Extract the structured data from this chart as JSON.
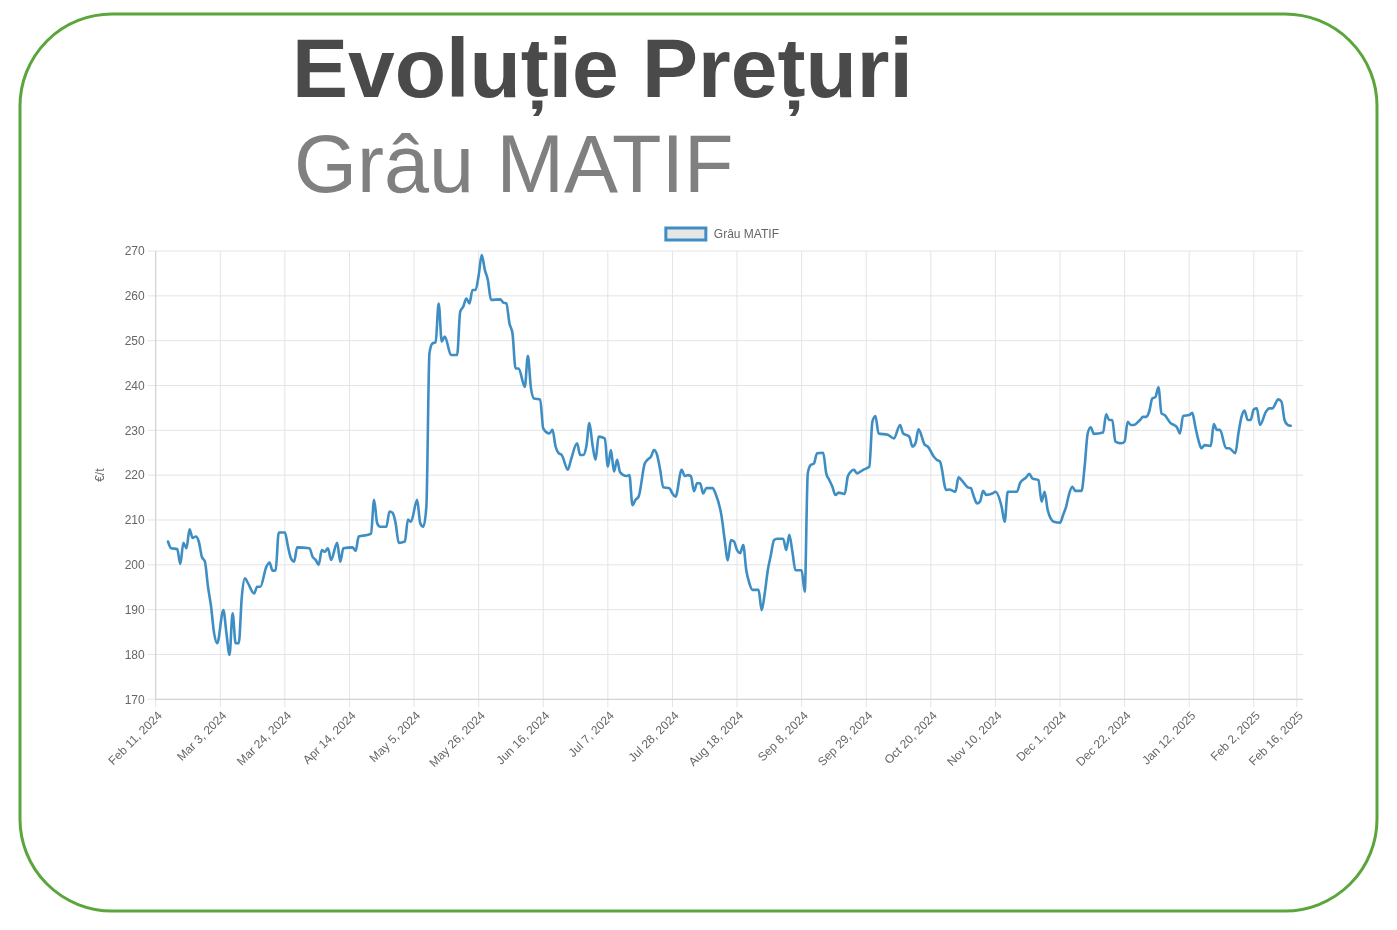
{
  "chart_data": {
    "type": "line",
    "title": "Evoluție Prețuri",
    "subtitle": "Grâu MATIF",
    "ylabel": "€/t",
    "x": [
      "2024-02-15",
      "2024-02-16",
      "2024-02-18",
      "2024-02-19",
      "2024-02-20",
      "2024-02-21",
      "2024-02-22",
      "2024-02-23",
      "2024-02-24",
      "2024-02-25",
      "2024-02-26",
      "2024-02-27",
      "2024-02-28",
      "2024-02-29",
      "2024-03-01",
      "2024-03-02",
      "2024-03-04",
      "2024-03-05",
      "2024-03-06",
      "2024-03-07",
      "2024-03-08",
      "2024-03-09",
      "2024-03-10",
      "2024-03-11",
      "2024-03-12",
      "2024-03-14",
      "2024-03-15",
      "2024-03-16",
      "2024-03-18",
      "2024-03-19",
      "2024-03-20",
      "2024-03-21",
      "2024-03-22",
      "2024-03-24",
      "2024-03-25",
      "2024-03-26",
      "2024-03-27",
      "2024-03-28",
      "2024-04-01",
      "2024-04-02",
      "2024-04-03",
      "2024-04-04",
      "2024-04-05",
      "2024-04-06",
      "2024-04-07",
      "2024-04-08",
      "2024-04-10",
      "2024-04-11",
      "2024-04-12",
      "2024-04-15",
      "2024-04-16",
      "2024-04-17",
      "2024-04-20",
      "2024-04-21",
      "2024-04-22",
      "2024-04-23",
      "2024-04-24",
      "2024-04-26",
      "2024-04-27",
      "2024-04-28",
      "2024-04-29",
      "2024-04-30",
      "2024-05-02",
      "2024-05-03",
      "2024-05-04",
      "2024-05-06",
      "2024-05-07",
      "2024-05-08",
      "2024-05-09",
      "2024-05-10",
      "2024-05-11",
      "2024-05-12",
      "2024-05-13",
      "2024-05-14",
      "2024-05-15",
      "2024-05-17",
      "2024-05-19",
      "2024-05-20",
      "2024-05-21",
      "2024-05-22",
      "2024-05-23",
      "2024-05-24",
      "2024-05-25",
      "2024-05-26",
      "2024-05-27",
      "2024-05-28",
      "2024-05-29",
      "2024-05-30",
      "2024-06-02",
      "2024-06-03",
      "2024-06-04",
      "2024-06-05",
      "2024-06-06",
      "2024-06-07",
      "2024-06-08",
      "2024-06-10",
      "2024-06-11",
      "2024-06-12",
      "2024-06-13",
      "2024-06-15",
      "2024-06-16",
      "2024-06-18",
      "2024-06-19",
      "2024-06-20",
      "2024-06-21",
      "2024-06-22",
      "2024-06-24",
      "2024-06-25",
      "2024-06-27",
      "2024-06-28",
      "2024-06-29",
      "2024-06-30",
      "2024-07-01",
      "2024-07-02",
      "2024-07-03",
      "2024-07-04",
      "2024-07-06",
      "2024-07-07",
      "2024-07-08",
      "2024-07-09",
      "2024-07-10",
      "2024-07-11",
      "2024-07-13",
      "2024-07-14",
      "2024-07-15",
      "2024-07-16",
      "2024-07-17",
      "2024-07-19",
      "2024-07-20",
      "2024-07-21",
      "2024-07-22",
      "2024-07-23",
      "2024-07-24",
      "2024-07-25",
      "2024-07-27",
      "2024-07-28",
      "2024-07-29",
      "2024-07-31",
      "2024-08-01",
      "2024-08-02",
      "2024-08-03",
      "2024-08-04",
      "2024-08-05",
      "2024-08-06",
      "2024-08-07",
      "2024-08-08",
      "2024-08-10",
      "2024-08-11",
      "2024-08-13",
      "2024-08-14",
      "2024-08-15",
      "2024-08-16",
      "2024-08-17",
      "2024-08-18",
      "2024-08-19",
      "2024-08-20",
      "2024-08-21",
      "2024-08-22",
      "2024-08-23",
      "2024-08-25",
      "2024-08-26",
      "2024-08-27",
      "2024-08-28",
      "2024-08-29",
      "2024-08-30",
      "2024-08-31",
      "2024-09-02",
      "2024-09-03",
      "2024-09-04",
      "2024-09-05",
      "2024-09-06",
      "2024-09-08",
      "2024-09-09",
      "2024-09-10",
      "2024-09-11",
      "2024-09-12",
      "2024-09-13",
      "2024-09-15",
      "2024-09-16",
      "2024-09-17",
      "2024-09-18",
      "2024-09-19",
      "2024-09-20",
      "2024-09-22",
      "2024-09-23",
      "2024-09-24",
      "2024-09-25",
      "2024-09-26",
      "2024-09-28",
      "2024-09-30",
      "2024-10-01",
      "2024-10-02",
      "2024-10-03",
      "2024-10-06",
      "2024-10-08",
      "2024-10-10",
      "2024-10-11",
      "2024-10-12",
      "2024-10-13",
      "2024-10-14",
      "2024-10-15",
      "2024-10-16",
      "2024-10-18",
      "2024-10-19",
      "2024-10-21",
      "2024-10-22",
      "2024-10-23",
      "2024-10-25",
      "2024-10-26",
      "2024-10-28",
      "2024-10-29",
      "2024-10-30",
      "2024-11-01",
      "2024-11-02",
      "2024-11-03",
      "2024-11-04",
      "2024-11-05",
      "2024-11-06",
      "2024-11-07",
      "2024-11-09",
      "2024-11-10",
      "2024-11-12",
      "2024-11-13",
      "2024-11-14",
      "2024-11-17",
      "2024-11-18",
      "2024-11-20",
      "2024-11-21",
      "2024-11-22",
      "2024-11-24",
      "2024-11-25",
      "2024-11-26",
      "2024-11-27",
      "2024-11-29",
      "2024-12-01",
      "2024-12-02",
      "2024-12-03",
      "2024-12-04",
      "2024-12-05",
      "2024-12-06",
      "2024-12-08",
      "2024-12-09",
      "2024-12-10",
      "2024-12-11",
      "2024-12-12",
      "2024-12-15",
      "2024-12-16",
      "2024-12-17",
      "2024-12-18",
      "2024-12-19",
      "2024-12-21",
      "2024-12-22",
      "2024-12-23",
      "2024-12-24",
      "2024-12-25",
      "2024-12-27",
      "2024-12-28",
      "2024-12-29",
      "2024-12-30",
      "2024-12-31",
      "2025-01-01",
      "2025-01-02",
      "2025-01-03",
      "2025-01-04",
      "2025-01-06",
      "2025-01-07",
      "2025-01-08",
      "2025-01-09",
      "2025-01-10",
      "2025-01-12",
      "2025-01-13",
      "2025-01-14",
      "2025-01-15",
      "2025-01-16",
      "2025-01-17",
      "2025-01-19",
      "2025-01-20",
      "2025-01-21",
      "2025-01-22",
      "2025-01-24",
      "2025-01-25",
      "2025-01-27",
      "2025-01-28",
      "2025-01-29",
      "2025-01-30",
      "2025-01-31",
      "2025-02-01",
      "2025-02-02",
      "2025-02-03",
      "2025-02-04",
      "2025-02-06",
      "2025-02-07",
      "2025-02-08",
      "2025-02-10",
      "2025-02-11",
      "2025-02-12",
      "2025-02-13",
      "2025-02-14"
    ],
    "series": [
      {
        "name": "Grâu MATIF",
        "color": "#3e8ec4",
        "values": [
          205.2,
          203.7,
          203.5,
          200.2,
          204.9,
          203.7,
          207.9,
          206,
          206.3,
          205.2,
          201.8,
          200.7,
          195.1,
          190.7,
          184.7,
          182.5,
          189.9,
          184.7,
          179.9,
          189.2,
          182.5,
          182.5,
          192.9,
          197,
          195.9,
          193.6,
          195.1,
          195.1,
          199.6,
          200.5,
          198.7,
          198.8,
          207.2,
          207.2,
          204.1,
          201.4,
          200.7,
          203.9,
          203.7,
          201.8,
          201.1,
          200,
          203.3,
          202.9,
          203.7,
          201.1,
          204.9,
          200.7,
          203.7,
          203.9,
          203.1,
          206.3,
          206.7,
          207,
          214.5,
          209.3,
          208.5,
          208.5,
          211.9,
          211.6,
          209.3,
          204.9,
          205.2,
          210.1,
          209.6,
          214.5,
          209.3,
          208.5,
          213,
          247.2,
          249.4,
          249.6,
          258.3,
          249.8,
          250.9,
          246.8,
          246.8,
          256.5,
          257.6,
          259.4,
          258.3,
          261.3,
          261.3,
          264.6,
          269.1,
          265.8,
          263.5,
          259.1,
          259.2,
          258.5,
          258.3,
          253.9,
          251.6,
          243.8,
          243.8,
          239.7,
          246.6,
          239.4,
          237.1,
          236.9,
          230.4,
          229.3,
          230.1,
          226.4,
          224.9,
          224.5,
          221.2,
          223.4,
          227.1,
          224.5,
          224.5,
          226.4,
          231.6,
          226.8,
          223.4,
          228.6,
          228.2,
          221.9,
          225.6,
          220.8,
          223.4,
          220.6,
          219.8,
          220,
          213.3,
          214.5,
          215.2,
          222.6,
          223.5,
          224.1,
          225.6,
          224.5,
          221.2,
          217.3,
          217.1,
          215.9,
          215.2,
          221.2,
          219.8,
          220,
          219.8,
          216.4,
          218.2,
          218.2,
          215.9,
          217.1,
          217.1,
          215.9,
          210.7,
          205.5,
          201,
          205.5,
          205.2,
          203.3,
          202.6,
          204.4,
          198.8,
          195.9,
          194.4,
          194.4,
          189.9,
          193.6,
          198.8,
          202.2,
          205.5,
          205.8,
          205.8,
          203.3,
          206.7,
          202.9,
          198.8,
          198.8,
          194,
          220.4,
          222.3,
          222.6,
          224.9,
          225,
          220.4,
          218.9,
          217.4,
          215.6,
          216.1,
          215.8,
          219.7,
          220.8,
          221.2,
          220.4,
          221.2,
          221.9,
          231.9,
          233.2,
          229.3,
          229,
          228.2,
          231.2,
          229.3,
          229,
          228.6,
          226.4,
          227.1,
          230.2,
          226.8,
          226.4,
          224.1,
          223.4,
          223,
          216.7,
          216.8,
          216.3,
          219.5,
          218.9,
          217.3,
          217.1,
          215.2,
          213.7,
          214.1,
          216.5,
          215.6,
          215.9,
          216.3,
          213,
          209.6,
          216.3,
          216.3,
          218.2,
          219.5,
          220.3,
          219.3,
          218.9,
          214.1,
          216.3,
          212.2,
          209.6,
          209.4,
          211.1,
          213,
          215.9,
          217.4,
          216.5,
          216.5,
          221.9,
          229.3,
          230.7,
          229.2,
          229.5,
          233.6,
          232.3,
          232.3,
          227.5,
          227.1,
          227.5,
          231.9,
          231.2,
          231.2,
          232.3,
          233,
          233,
          234.2,
          237.1,
          237.4,
          239.6,
          233.8,
          233.4,
          231.6,
          231.2,
          230.7,
          229.3,
          233.2,
          233.4,
          233.9,
          230.8,
          227.8,
          226,
          226.7,
          226.5,
          231.4,
          230.1,
          230.1,
          226,
          226,
          224.9,
          229.3,
          233,
          234.4,
          232.3,
          232.3,
          234.7,
          234.9,
          231.2,
          234.2,
          234.9,
          234.9,
          236.9,
          236.4,
          232.3,
          231.2,
          231
        ]
      }
    ],
    "xlim": [
      "2024-02-11",
      "2025-02-18"
    ],
    "xticks": [
      {
        "value": "2024-02-11",
        "label": "Feb 11, 2024"
      },
      {
        "value": "2024-03-03",
        "label": "Mar 3, 2024"
      },
      {
        "value": "2024-03-24",
        "label": "Mar 24, 2024"
      },
      {
        "value": "2024-04-14",
        "label": "Apr 14, 2024"
      },
      {
        "value": "2024-05-05",
        "label": "May 5, 2024"
      },
      {
        "value": "2024-05-26",
        "label": "May 26, 2024"
      },
      {
        "value": "2024-06-16",
        "label": "Jun 16, 2024"
      },
      {
        "value": "2024-07-07",
        "label": "Jul 7, 2024"
      },
      {
        "value": "2024-07-28",
        "label": "Jul 28, 2024"
      },
      {
        "value": "2024-08-18",
        "label": "Aug 18, 2024"
      },
      {
        "value": "2024-09-08",
        "label": "Sep 8, 2024"
      },
      {
        "value": "2024-09-29",
        "label": "Sep 29, 2024"
      },
      {
        "value": "2024-10-20",
        "label": "Oct 20, 2024"
      },
      {
        "value": "2024-11-10",
        "label": "Nov 10, 2024"
      },
      {
        "value": "2024-12-01",
        "label": "Dec 1, 2024"
      },
      {
        "value": "2024-12-22",
        "label": "Dec 22, 2024"
      },
      {
        "value": "2025-01-12",
        "label": "Jan 12, 2025"
      },
      {
        "value": "2025-02-02",
        "label": "Feb 2, 2025"
      },
      {
        "value": "2025-02-16",
        "label": "Feb 16, 2025"
      }
    ],
    "ylim": [
      170,
      270
    ],
    "yticks": [
      170,
      180,
      190,
      200,
      210,
      220,
      230,
      240,
      250,
      260,
      270
    ],
    "grid": true,
    "legend": "top"
  }
}
